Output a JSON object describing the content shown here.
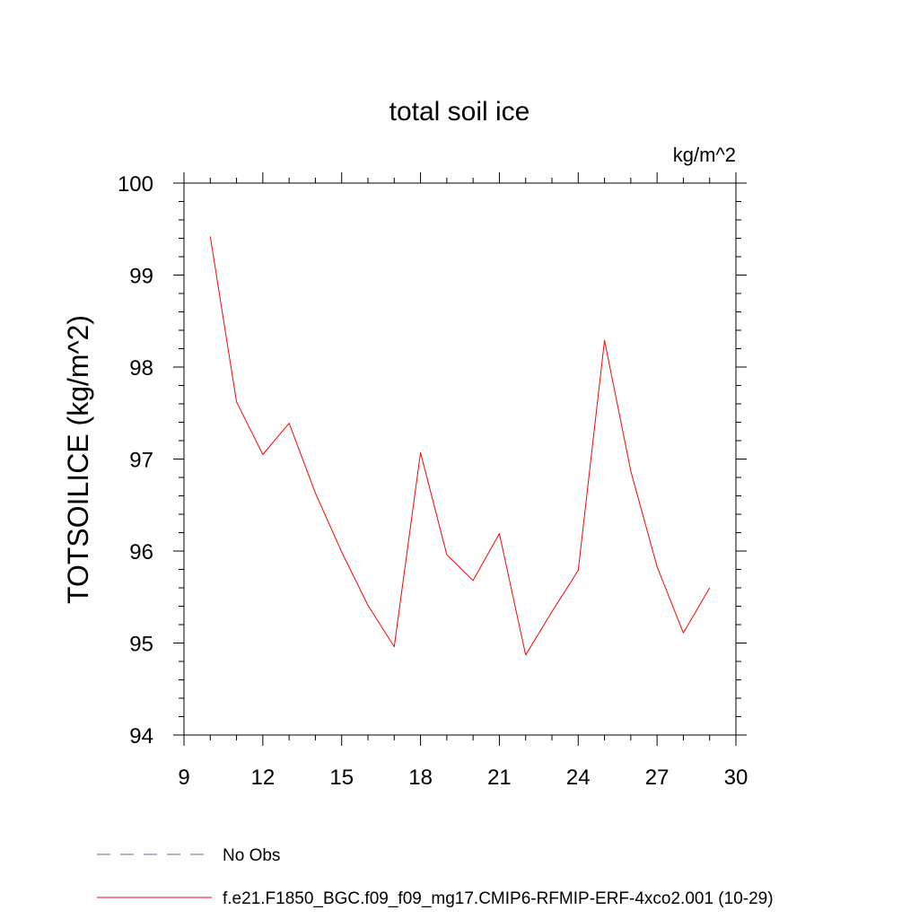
{
  "chart_data": {
    "type": "line",
    "title": "total soil ice",
    "units": "kg/m^2",
    "ylabel": "TOTSOILICE  (kg/m^2)",
    "xlabel": "",
    "xlim": [
      9,
      30
    ],
    "ylim": [
      94,
      100
    ],
    "xticks": [
      9,
      12,
      15,
      18,
      21,
      24,
      27,
      30
    ],
    "xtick_labels": [
      "9",
      "12",
      "15",
      "18",
      "21",
      "24",
      "27",
      "30"
    ],
    "yticks": [
      94,
      95,
      96,
      97,
      98,
      99,
      100
    ],
    "ytick_labels": [
      "94",
      "95",
      "96",
      "97",
      "98",
      "99",
      "100"
    ],
    "grid": false,
    "legend_position": "bottom",
    "series": [
      {
        "name": "f.e21.F1850_BGC.f09_f09_mg17.CMIP6-RFMIP-ERF-4xco2.001 (10-29)",
        "color": "#ff0000",
        "style": "solid",
        "x": [
          10,
          11,
          12,
          13,
          14,
          15,
          16,
          17,
          18,
          19,
          20,
          21,
          22,
          23,
          24,
          25,
          26,
          27,
          28,
          29
        ],
        "y": [
          99.42,
          97.62,
          97.05,
          97.39,
          96.63,
          95.99,
          95.41,
          94.96,
          97.07,
          95.96,
          95.68,
          96.19,
          94.87,
          95.34,
          95.79,
          98.29,
          96.87,
          95.83,
          95.11,
          95.6
        ]
      }
    ],
    "legend": [
      {
        "label": "No Obs",
        "color": "#6f5fa8",
        "style": "dashed"
      },
      {
        "label": "f.e21.F1850_BGC.f09_f09_mg17.CMIP6-RFMIP-ERF-4xco2.001 (10-29)",
        "color": "#ff0000",
        "style": "solid"
      }
    ]
  }
}
